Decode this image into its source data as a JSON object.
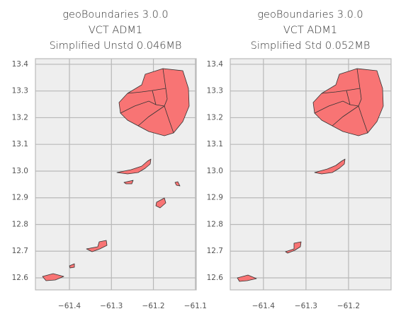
{
  "chart_data": [
    {
      "type": "map",
      "title": [
        "geoBoundaries 3.0.0",
        "VCT ADM1",
        "Simplified Unstd 0.046MB"
      ],
      "xlim": [
        -61.481,
        -61.098
      ],
      "ylim": [
        12.555,
        13.421
      ],
      "xticks": [
        {
          "value": -61.4,
          "label": "−61.4"
        },
        {
          "value": -61.3,
          "label": "−61.3"
        },
        {
          "value": -61.2,
          "label": "−61.2"
        },
        {
          "value": -61.1,
          "label": "−61.1"
        }
      ],
      "yticks": [
        {
          "value": 12.6,
          "label": "12.6"
        },
        12.7,
        12.8,
        12.9,
        {
          "value": 13.0,
          "label": "13.0"
        },
        13.1,
        13.2,
        13.3,
        13.4
      ],
      "grid": true,
      "color": "#f87474"
    },
    {
      "type": "map",
      "title": [
        "geoBoundaries 3.0.0",
        "VCT ADM1",
        "Simplified Std 0.052MB"
      ],
      "xlim": [
        -61.478,
        -61.1
      ],
      "ylim": [
        12.555,
        13.421
      ],
      "xticks": [
        {
          "value": -61.4,
          "label": "−61.4"
        },
        {
          "value": -61.3,
          "label": "−61.3"
        },
        {
          "value": -61.2,
          "label": "−61.2"
        }
      ],
      "yticks": [
        {
          "value": 12.6,
          "label": "12.6"
        },
        12.7,
        12.8,
        12.9,
        {
          "value": 13.0,
          "label": "13.0"
        },
        13.1,
        13.2,
        13.3,
        13.4
      ],
      "grid": true,
      "color": "#f87474"
    }
  ]
}
